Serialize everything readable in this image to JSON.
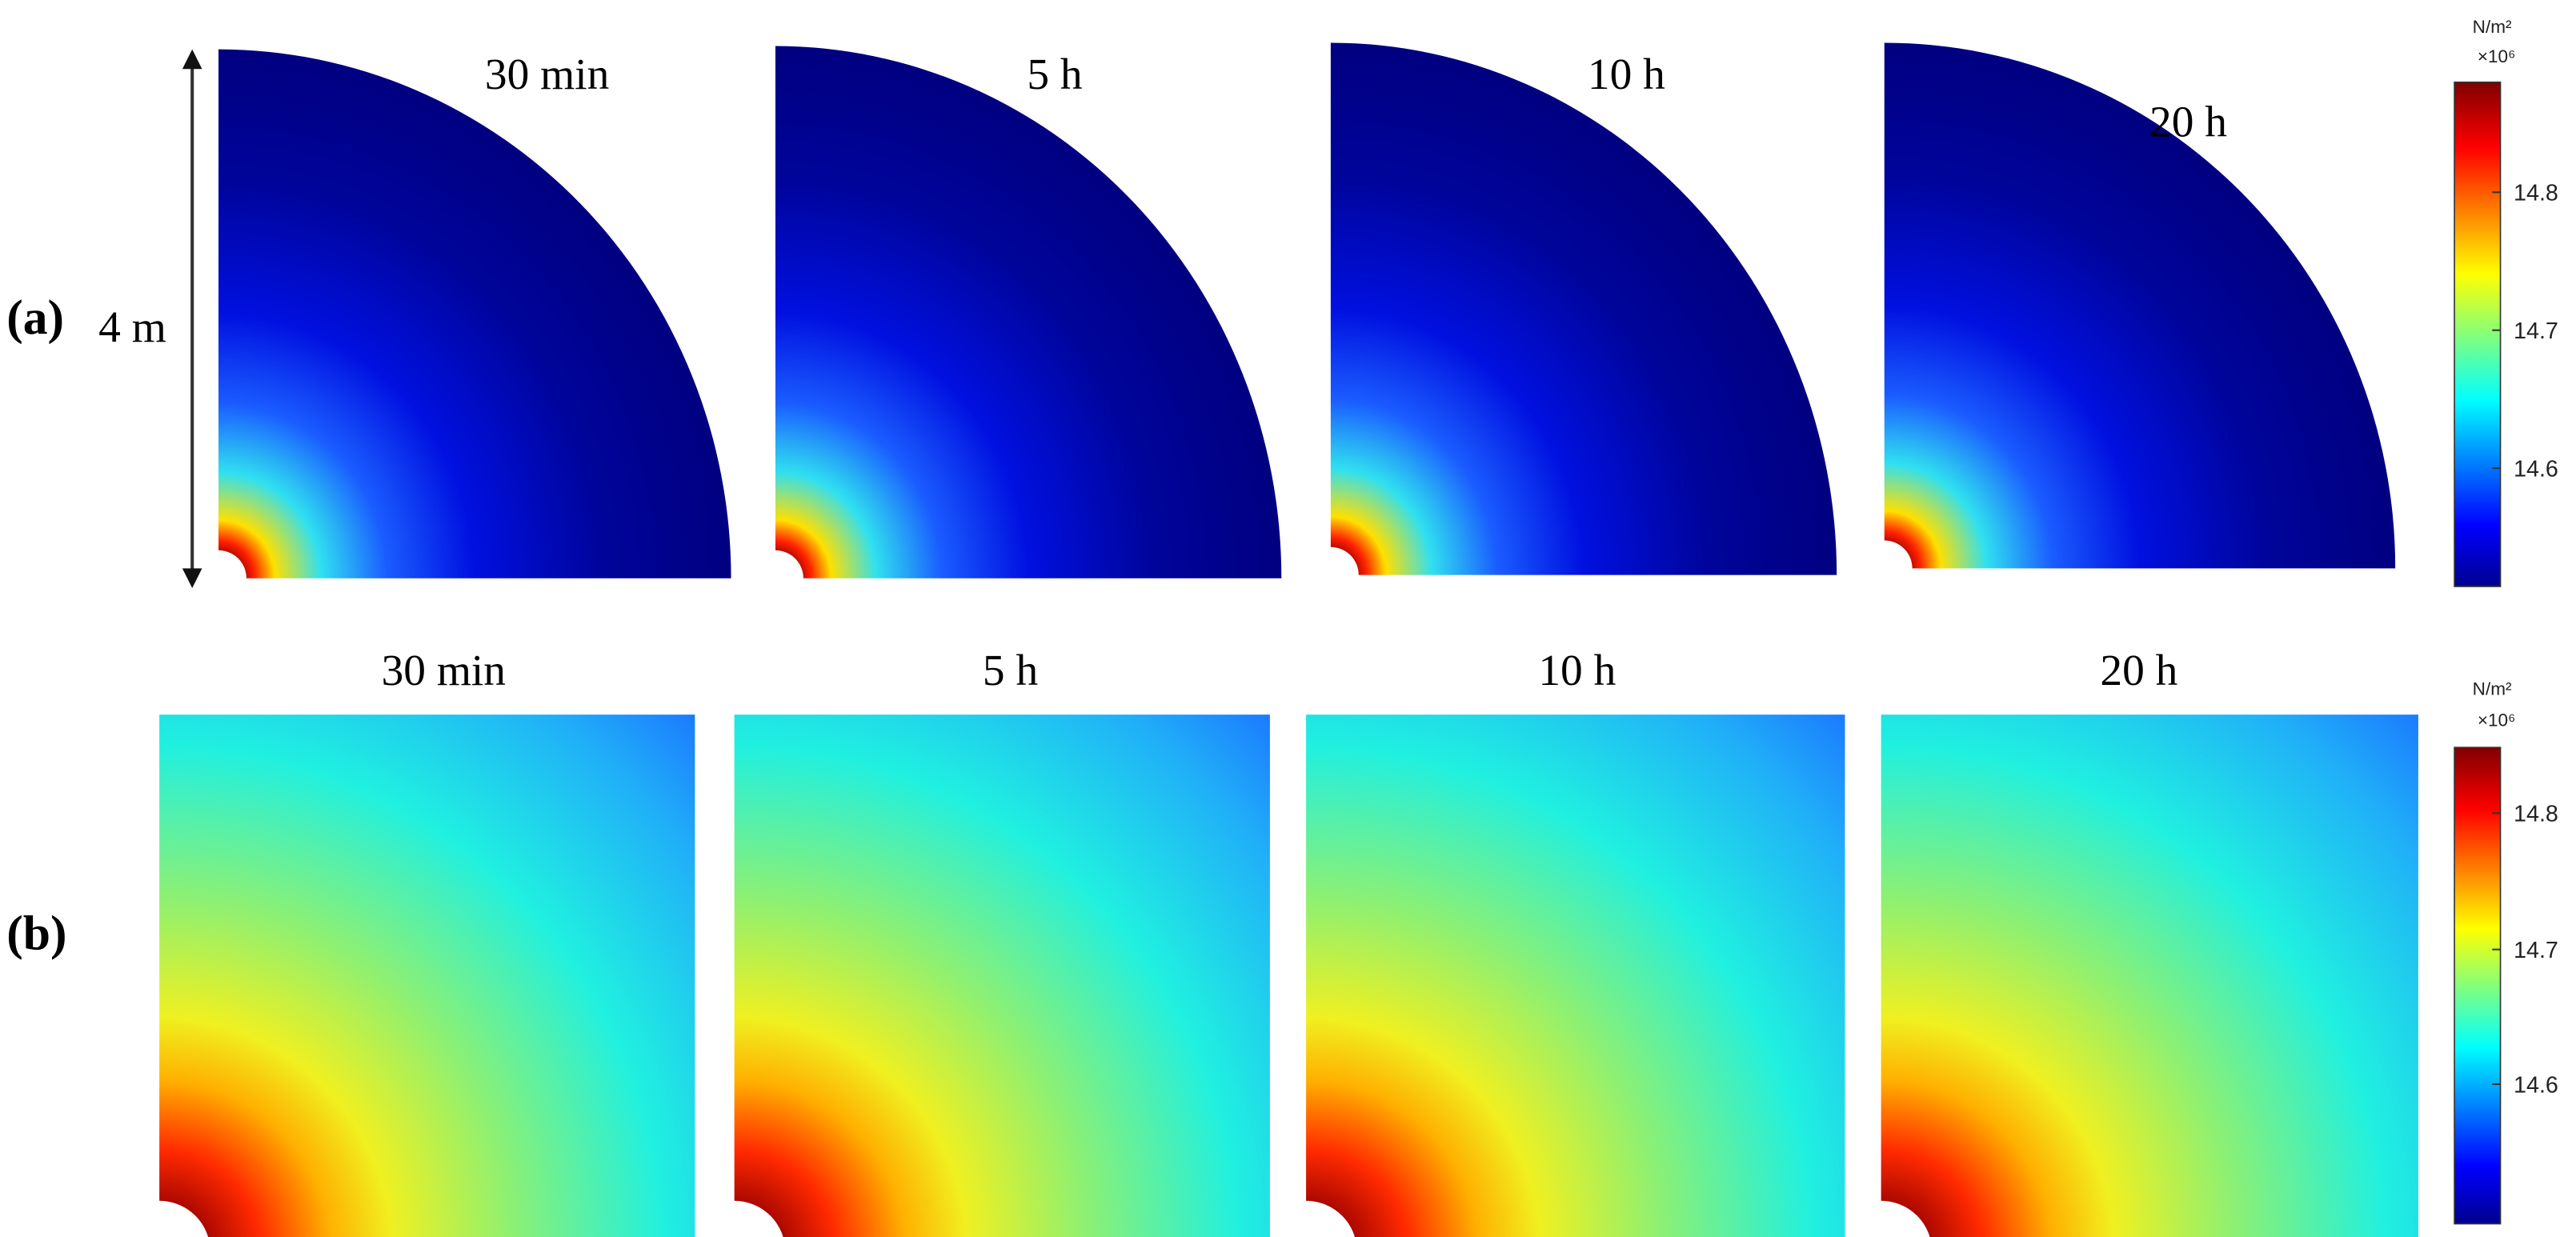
{
  "panels": {
    "a": {
      "label": "(a)",
      "dimension": "4 m",
      "times": [
        "30 min",
        "5 h",
        "10 h",
        "20 h"
      ]
    },
    "b": {
      "label": "(b)",
      "times": [
        "30 min",
        "5 h",
        "10 h",
        "20 h"
      ]
    }
  },
  "colorbars": [
    {
      "unit": "N/m²",
      "scale": "×10⁶",
      "ticks": [
        14.8,
        14.7,
        14.6
      ]
    },
    {
      "unit": "N/m²",
      "scale": "×10⁶",
      "ticks": [
        14.8,
        14.7,
        14.6
      ]
    }
  ]
}
